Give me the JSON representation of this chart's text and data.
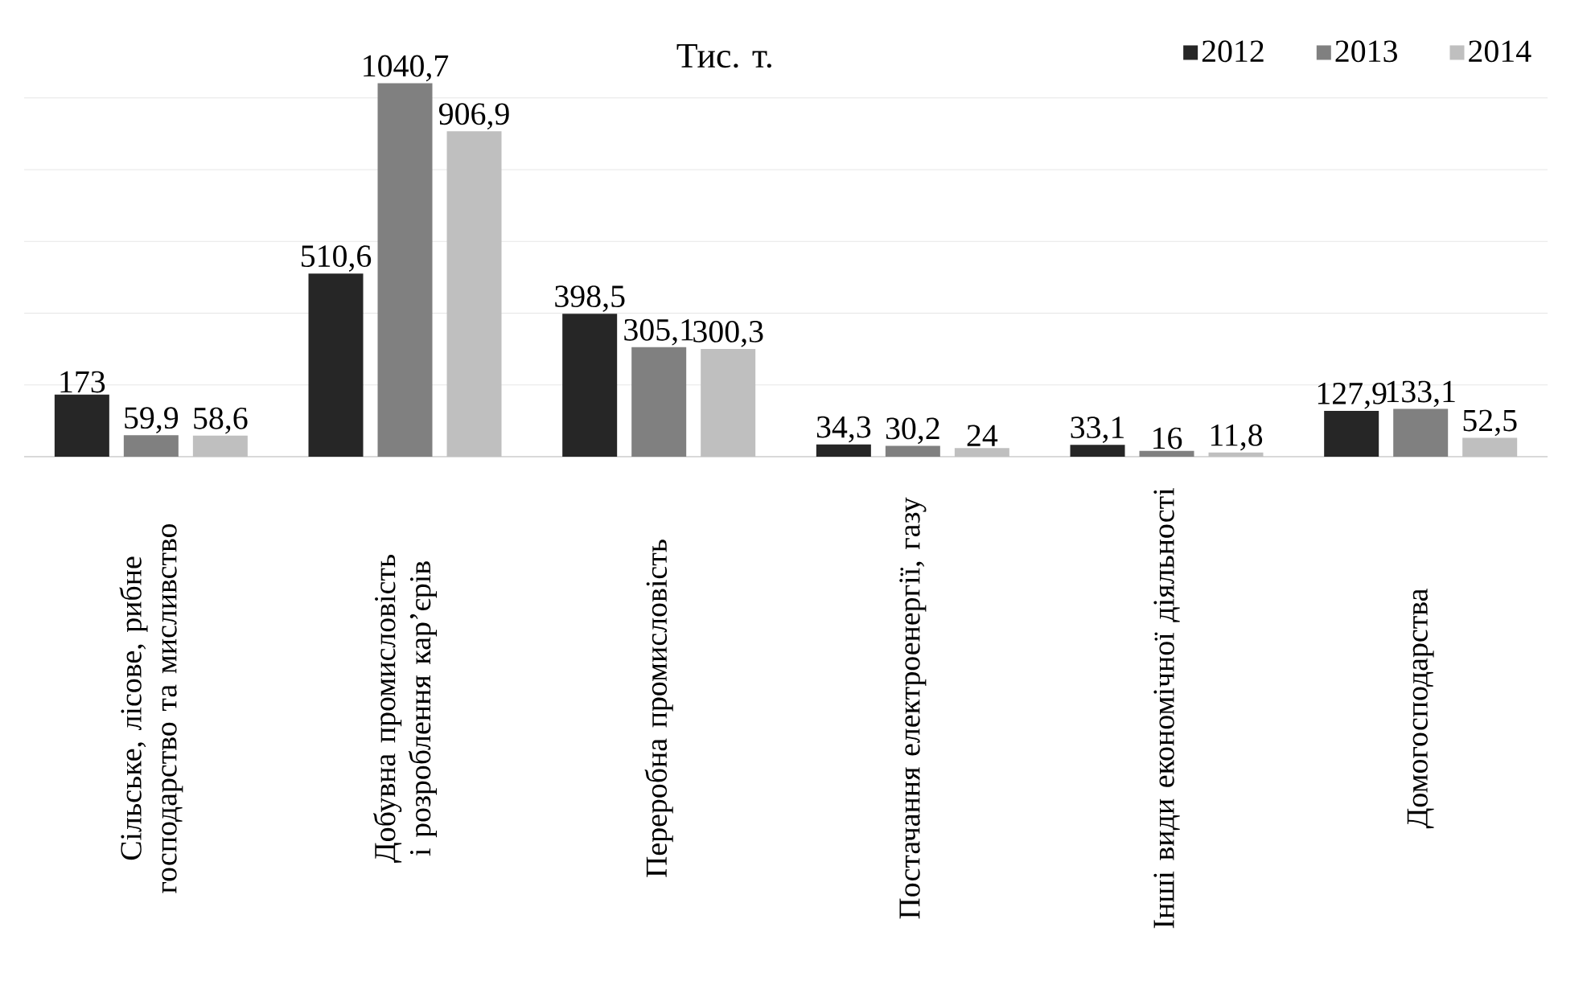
{
  "chart_data": {
    "type": "bar",
    "title": "Тис. т.",
    "categories": [
      "Сільське, лісове, рибне господарство та мисливство",
      "Добувна промисловість і розроблення кар’єрів",
      "Переробна промисловість",
      "Постачання електроенергії, газу",
      "Інші види економічної діяльності",
      "Домогосподарства"
    ],
    "series": [
      {
        "name": "2012",
        "color": "#262626",
        "values": [
          173,
          510.6,
          398.5,
          34.3,
          33.1,
          127.9
        ],
        "value_labels": [
          "173",
          "510,6",
          "398,5",
          "34,3",
          "33,1",
          "127,9"
        ]
      },
      {
        "name": "2013",
        "color": "#808080",
        "values": [
          59.9,
          1040.7,
          305.1,
          30.2,
          16,
          133.1
        ],
        "value_labels": [
          "59,9",
          "1040,7",
          "305,1",
          "30,2",
          "16",
          "133,1"
        ]
      },
      {
        "name": "2014",
        "color": "#bfbfbf",
        "values": [
          58.6,
          906.9,
          300.3,
          24,
          11.8,
          52.5
        ],
        "value_labels": [
          "58,6",
          "906,9",
          "300,3",
          "24",
          "11,8",
          "52,5"
        ]
      }
    ],
    "tick_labels": "x",
    "grid": "y",
    "legend": "top right"
  }
}
